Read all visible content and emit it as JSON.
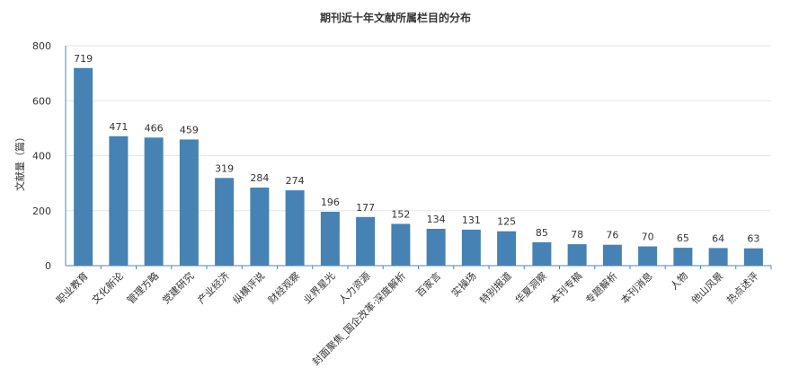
{
  "chart_data": {
    "type": "bar",
    "title": "期刊近十年文献所属栏目的分布",
    "xlabel": "",
    "ylabel": "文献量（篇）",
    "ylim": [
      0,
      800
    ],
    "yticks": [
      0,
      200,
      400,
      600,
      800
    ],
    "grid": true,
    "bar_color": "#4682b4",
    "categories": [
      "职业教育",
      "文化新论",
      "管理方略",
      "党建研究",
      "产业经济",
      "纵横评说",
      "财经观察",
      "业界星光",
      "人力资源",
      "封面聚焦_国企改革·深度解析",
      "百家言",
      "实操场",
      "特别报道",
      "华夏洞察",
      "本刊专稿",
      "专题解析",
      "本刊消息",
      "人物",
      "他山风景",
      "热点述评"
    ],
    "values": [
      719,
      471,
      466,
      459,
      319,
      284,
      274,
      196,
      177,
      152,
      134,
      131,
      125,
      85,
      78,
      76,
      70,
      65,
      64,
      63
    ]
  }
}
